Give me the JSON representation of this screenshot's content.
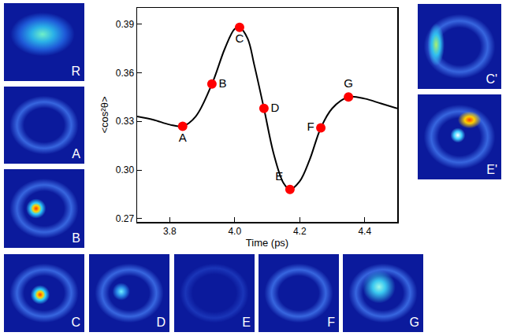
{
  "chart_data": {
    "type": "line",
    "x_label": "Time (ps)",
    "y_label": "<cos²θ>",
    "x": [
      3.7,
      3.75,
      3.8,
      3.84,
      3.88,
      3.93,
      3.97,
      4.0,
      4.015,
      4.04,
      4.06,
      4.09,
      4.12,
      4.15,
      4.17,
      4.2,
      4.23,
      4.265,
      4.3,
      4.35,
      4.4,
      4.45,
      4.5
    ],
    "values": [
      0.333,
      0.331,
      0.328,
      0.327,
      0.333,
      0.353,
      0.375,
      0.387,
      0.388,
      0.381,
      0.365,
      0.338,
      0.31,
      0.292,
      0.288,
      0.293,
      0.306,
      0.326,
      0.338,
      0.345,
      0.344,
      0.341,
      0.338
    ],
    "color": "#000000",
    "line_style": "smooth",
    "points": {
      "labels": [
        "A",
        "B",
        "C",
        "D",
        "E",
        "F",
        "G"
      ],
      "x": [
        3.84,
        3.93,
        4.015,
        4.09,
        4.17,
        4.265,
        4.35
      ],
      "values": [
        0.327,
        0.353,
        0.388,
        0.338,
        0.288,
        0.326,
        0.345
      ],
      "color": "#ff0000",
      "marker": "circle"
    },
    "xlim": [
      3.7,
      4.5
    ],
    "xticks": [
      3.8,
      {
        "value": 4.0,
        "label": "4.0"
      },
      4.2,
      4.4
    ],
    "ylim": [
      0.268,
      0.4
    ],
    "yticks": [
      0.27,
      {
        "value": 0.3,
        "label": "0.30"
      },
      0.33,
      0.36,
      0.39
    ],
    "grid": false
  },
  "panels": [
    {
      "label": "R"
    },
    {
      "label": "A"
    },
    {
      "label": "B"
    },
    {
      "label": "C"
    },
    {
      "label": "D"
    },
    {
      "label": "E"
    },
    {
      "label": "F"
    },
    {
      "label": "G"
    },
    {
      "label": "C'"
    },
    {
      "label": "E'"
    }
  ]
}
